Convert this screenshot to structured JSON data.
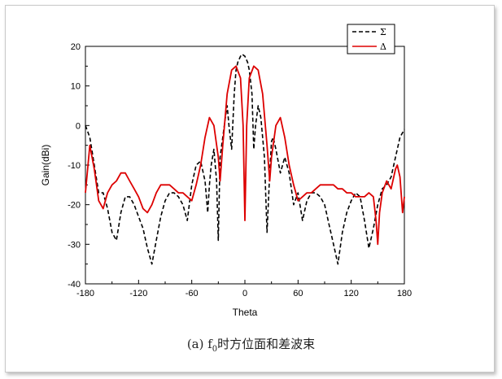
{
  "chart_data": {
    "type": "line",
    "title": "",
    "xlabel": "Theta",
    "ylabel": "Gain(dBi)",
    "xlim": [
      -180,
      180
    ],
    "ylim": [
      -40,
      20
    ],
    "xticks": [
      -180,
      -120,
      -60,
      0,
      60,
      120,
      180
    ],
    "yticks": [
      -40,
      -30,
      -20,
      -10,
      0,
      10,
      20
    ],
    "grid": false,
    "legend_position": "top-right",
    "series": [
      {
        "name": "Σ",
        "color": "#000000",
        "style": "dashed",
        "x": [
          -180,
          -175,
          -170,
          -165,
          -160,
          -155,
          -150,
          -145,
          -140,
          -135,
          -130,
          -125,
          -120,
          -115,
          -110,
          -105,
          -100,
          -95,
          -90,
          -85,
          -80,
          -75,
          -70,
          -65,
          -60,
          -55,
          -50,
          -45,
          -42,
          -40,
          -38,
          -35,
          -32,
          -30,
          -28,
          -25,
          -22,
          -20,
          -18,
          -15,
          -12,
          -10,
          -8,
          -5,
          -3,
          0,
          3,
          5,
          8,
          10,
          12,
          15,
          18,
          20,
          22,
          25,
          28,
          30,
          32,
          35,
          40,
          45,
          50,
          55,
          60,
          65,
          70,
          75,
          80,
          85,
          90,
          95,
          100,
          105,
          110,
          115,
          120,
          125,
          130,
          135,
          140,
          145,
          150,
          155,
          160,
          165,
          170,
          175,
          180
        ],
        "y": [
          0,
          -3,
          -10,
          -17,
          -17,
          -21,
          -27,
          -29,
          -22,
          -18,
          -18,
          -20,
          -23,
          -26,
          -31,
          -35,
          -29,
          -23,
          -19,
          -17,
          -17,
          -18,
          -20,
          -24,
          -15,
          -10,
          -9,
          -14,
          -22,
          -15,
          -10,
          -6,
          -14,
          -29,
          -8,
          -3,
          2,
          5,
          0,
          -6,
          8,
          14,
          16,
          17.5,
          18,
          17.5,
          16,
          14,
          8,
          -6,
          0,
          5,
          2,
          -3,
          -8,
          -27,
          -12,
          -4,
          -3,
          -6,
          -12,
          -8,
          -12,
          -20,
          -17,
          -24,
          -19,
          -17,
          -17,
          -18,
          -20,
          -25,
          -30,
          -35,
          -27,
          -22,
          -19,
          -17,
          -18,
          -24,
          -31,
          -26,
          -20,
          -16,
          -15,
          -13,
          -8,
          -3,
          -1
        ]
      },
      {
        "name": "Δ",
        "color": "#dd0000",
        "style": "solid",
        "x": [
          -180,
          -175,
          -170,
          -165,
          -160,
          -155,
          -150,
          -145,
          -140,
          -135,
          -130,
          -125,
          -120,
          -115,
          -110,
          -105,
          -100,
          -95,
          -90,
          -85,
          -80,
          -75,
          -70,
          -65,
          -60,
          -55,
          -50,
          -45,
          -40,
          -35,
          -30,
          -28,
          -25,
          -20,
          -15,
          -10,
          -5,
          -2,
          0,
          2,
          5,
          10,
          15,
          20,
          25,
          28,
          30,
          35,
          40,
          45,
          50,
          55,
          60,
          65,
          70,
          75,
          80,
          85,
          90,
          95,
          100,
          105,
          110,
          115,
          120,
          125,
          130,
          135,
          140,
          145,
          148,
          150,
          152,
          155,
          160,
          165,
          170,
          172,
          175,
          178,
          180
        ],
        "y": [
          -17,
          -5,
          -11,
          -19,
          -21,
          -17,
          -15,
          -14,
          -12,
          -12,
          -14,
          -16,
          -18,
          -21,
          -22,
          -20,
          -17,
          -15,
          -15,
          -15,
          -16,
          -17,
          -17,
          -18,
          -19,
          -15,
          -10,
          -3,
          2,
          0,
          -8,
          -14,
          -5,
          8,
          14,
          15,
          12,
          0,
          -24,
          0,
          12,
          15,
          14,
          8,
          -5,
          -14,
          -8,
          0,
          2,
          -3,
          -10,
          -15,
          -19,
          -18,
          -17,
          -17,
          -16,
          -15,
          -15,
          -15,
          -15,
          -16,
          -16,
          -17,
          -17,
          -18,
          -18,
          -18,
          -17,
          -18,
          -24,
          -30,
          -22,
          -17,
          -14,
          -16,
          -11,
          -10,
          -13,
          -22,
          -18
        ]
      }
    ]
  },
  "caption": {
    "prefix": "(a)  f",
    "subscript": "0",
    "suffix": "时方位面和差波束"
  }
}
